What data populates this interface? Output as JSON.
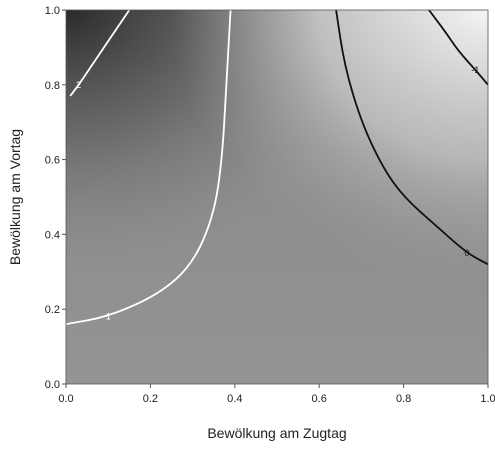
{
  "chart_data": {
    "type": "heatmap",
    "xlabel": "Bewölkung am Zugtag",
    "ylabel": "Bewölkung am Vortag",
    "xlim": [
      0.0,
      1.0
    ],
    "ylim": [
      0.0,
      1.0
    ],
    "x_ticks": [
      "0.0",
      "0.2",
      "0.4",
      "0.6",
      "0.8",
      "1.0"
    ],
    "y_ticks": [
      "0.0",
      "0.2",
      "0.4",
      "0.6",
      "0.8",
      "1.0"
    ],
    "contours": [
      {
        "level": "2",
        "color": "#ffffff",
        "points": [
          [
            0.15,
            1.0
          ],
          [
            0.12,
            0.95
          ],
          [
            0.09,
            0.9
          ],
          [
            0.06,
            0.85
          ],
          [
            0.03,
            0.8
          ],
          [
            0.01,
            0.77
          ]
        ]
      },
      {
        "level": "1",
        "color": "#ffffff",
        "points": [
          [
            0.39,
            1.0
          ],
          [
            0.38,
            0.8
          ],
          [
            0.37,
            0.6
          ],
          [
            0.35,
            0.45
          ],
          [
            0.3,
            0.32
          ],
          [
            0.22,
            0.24
          ],
          [
            0.1,
            0.18
          ],
          [
            0.0,
            0.16
          ]
        ]
      },
      {
        "level": "0",
        "color": "#111111",
        "points": [
          [
            0.64,
            1.0
          ],
          [
            0.66,
            0.85
          ],
          [
            0.7,
            0.7
          ],
          [
            0.75,
            0.58
          ],
          [
            0.8,
            0.5
          ],
          [
            0.88,
            0.42
          ],
          [
            0.95,
            0.35
          ],
          [
            1.0,
            0.32
          ]
        ]
      },
      {
        "level": "-1",
        "color": "#111111",
        "points": [
          [
            0.86,
            1.0
          ],
          [
            0.9,
            0.94
          ],
          [
            0.93,
            0.89
          ],
          [
            0.97,
            0.84
          ],
          [
            1.0,
            0.8
          ]
        ]
      }
    ],
    "field_colors": {
      "dark": "#2e2e2e",
      "mid": "#8a8a8a",
      "light": "#f2f2f2"
    },
    "grid": false
  }
}
